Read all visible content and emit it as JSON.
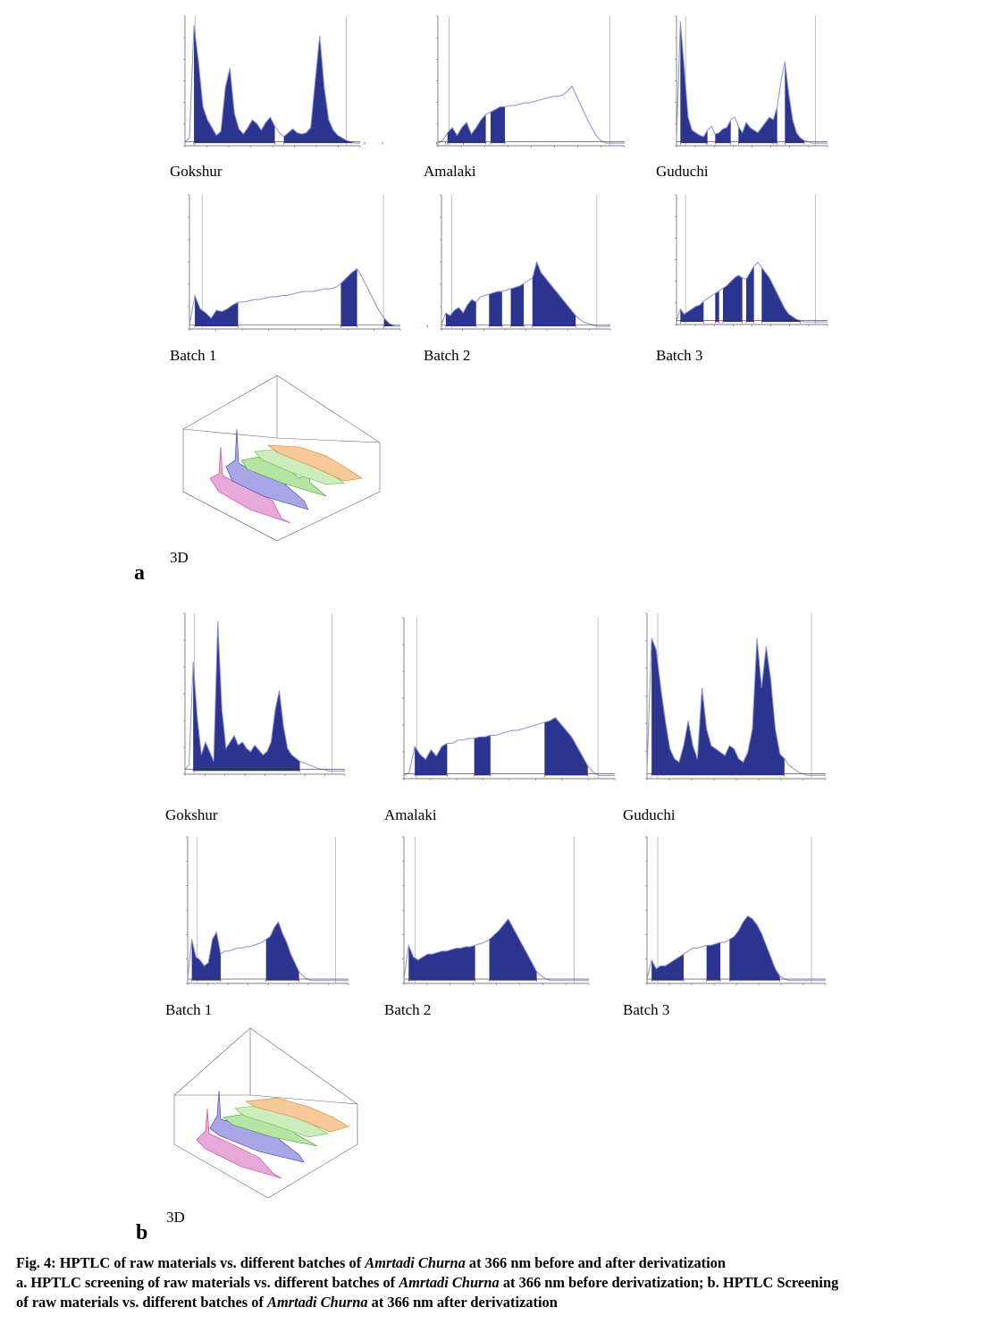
{
  "colors": {
    "fill": "#2b3590",
    "baseline": "#8a8fd8",
    "axis": "#555555",
    "marker": "#d43a8f"
  },
  "chart_data": [
    {
      "id": "a1",
      "type": "area",
      "label": "Gokshur",
      "ylim": [
        0,
        1
      ],
      "values": [
        0.03,
        0.06,
        0.93,
        0.65,
        0.3,
        0.2,
        0.14,
        0.08,
        0.11,
        0.45,
        0.6,
        0.25,
        0.13,
        0.09,
        0.14,
        0.2,
        0.17,
        0.12,
        0.18,
        0.22,
        0.15,
        0.1,
        0.07,
        0.1,
        0.13,
        0.1,
        0.09,
        0.1,
        0.14,
        0.5,
        0.85,
        0.45,
        0.2,
        0.12,
        0.08,
        0.06,
        0.04,
        0.03,
        0.02,
        0.02
      ],
      "fills": [
        [
          2,
          20
        ],
        [
          22,
          40
        ],
        [
          44,
          56
        ],
        [
          58,
          62
        ]
      ],
      "baseline": [
        [
          0,
          0.05
        ],
        [
          60,
          0.05
        ]
      ]
    },
    {
      "id": "a2",
      "type": "area",
      "label": "Amalaki",
      "ylim": [
        0,
        1
      ],
      "values": [
        0.02,
        0.04,
        0.1,
        0.14,
        0.08,
        0.14,
        0.18,
        0.09,
        0.14,
        0.2,
        0.24,
        0.26,
        0.28,
        0.3,
        0.3,
        0.31,
        0.31,
        0.32,
        0.33,
        0.33,
        0.34,
        0.35,
        0.36,
        0.37,
        0.38,
        0.38,
        0.39,
        0.42,
        0.46,
        0.38,
        0.3,
        0.22,
        0.15,
        0.08,
        0.04,
        0.02,
        0.02,
        0.02,
        0.02,
        0.02
      ],
      "fills": [
        [
          2,
          10
        ],
        [
          11,
          14
        ],
        [
          56,
          70
        ]
      ],
      "baseline": [
        [
          0,
          0.05
        ],
        [
          80,
          0.05
        ]
      ]
    },
    {
      "id": "a3",
      "type": "area",
      "label": "Guduchi",
      "ylim": [
        0,
        1
      ],
      "values": [
        0.05,
        0.96,
        0.6,
        0.22,
        0.12,
        0.1,
        0.08,
        0.07,
        0.12,
        0.15,
        0.09,
        0.1,
        0.13,
        0.14,
        0.2,
        0.22,
        0.15,
        0.1,
        0.18,
        0.14,
        0.12,
        0.1,
        0.14,
        0.18,
        0.22,
        0.2,
        0.3,
        0.5,
        0.65,
        0.4,
        0.2,
        0.1,
        0.06,
        0.04,
        0.03,
        0.02,
        0.02,
        0.02,
        0.02,
        0.02
      ],
      "fills": [
        [
          1,
          8
        ],
        [
          10,
          14
        ],
        [
          16,
          26
        ],
        [
          28,
          33
        ]
      ],
      "baseline": [
        [
          0,
          0.05
        ],
        [
          60,
          0.05
        ]
      ]
    },
    {
      "id": "a4",
      "type": "area",
      "label": "Batch 1",
      "ylim": [
        0,
        1
      ],
      "values": [
        0.03,
        0.25,
        0.15,
        0.12,
        0.08,
        0.14,
        0.13,
        0.15,
        0.18,
        0.2,
        0.2,
        0.21,
        0.22,
        0.22,
        0.23,
        0.24,
        0.24,
        0.25,
        0.25,
        0.26,
        0.27,
        0.28,
        0.28,
        0.28,
        0.29,
        0.3,
        0.3,
        0.31,
        0.34,
        0.38,
        0.42,
        0.45,
        0.38,
        0.3,
        0.22,
        0.14,
        0.08,
        0.04,
        0.02,
        0.02
      ],
      "fills": [
        [
          1,
          9
        ],
        [
          28,
          31
        ],
        [
          36,
          44
        ]
      ],
      "baseline": [
        [
          0,
          0.04
        ],
        [
          60,
          0.04
        ]
      ]
    },
    {
      "id": "a5",
      "type": "area",
      "label": "Batch 2",
      "ylim": [
        0,
        1
      ],
      "values": [
        0.03,
        0.12,
        0.1,
        0.14,
        0.16,
        0.12,
        0.18,
        0.22,
        0.2,
        0.24,
        0.25,
        0.26,
        0.27,
        0.28,
        0.28,
        0.29,
        0.3,
        0.31,
        0.32,
        0.34,
        0.36,
        0.38,
        0.5,
        0.42,
        0.38,
        0.34,
        0.3,
        0.26,
        0.22,
        0.18,
        0.14,
        0.1,
        0.07,
        0.05,
        0.04,
        0.03,
        0.02,
        0.02,
        0.02,
        0.02
      ],
      "fills": [
        [
          1,
          8
        ],
        [
          11,
          14
        ],
        [
          16,
          19
        ],
        [
          21,
          31
        ]
      ],
      "baseline": [
        [
          0,
          0.04
        ],
        [
          60,
          0.04
        ]
      ]
    },
    {
      "id": "a6",
      "type": "area",
      "label": "Batch 3",
      "ylim": [
        0,
        1
      ],
      "values": [
        0.03,
        0.12,
        0.08,
        0.1,
        0.12,
        0.14,
        0.15,
        0.18,
        0.2,
        0.22,
        0.24,
        0.26,
        0.28,
        0.3,
        0.33,
        0.36,
        0.38,
        0.36,
        0.35,
        0.4,
        0.45,
        0.48,
        0.44,
        0.4,
        0.36,
        0.3,
        0.24,
        0.18,
        0.12,
        0.08,
        0.06,
        0.04,
        0.03,
        0.02,
        0.02,
        0.02,
        0.02,
        0.02,
        0.02,
        0.02
      ],
      "fills": [
        [
          1,
          7
        ],
        [
          10,
          11
        ],
        [
          12,
          17
        ],
        [
          18,
          20
        ],
        [
          22,
          32
        ]
      ],
      "baseline": [
        [
          0,
          0.05
        ],
        [
          60,
          0.05
        ]
      ]
    },
    {
      "id": "b1",
      "type": "area",
      "label": "Gokshur",
      "ylim": [
        0,
        1
      ],
      "values": [
        0.03,
        0.06,
        0.7,
        0.35,
        0.12,
        0.2,
        0.14,
        0.08,
        0.95,
        0.4,
        0.16,
        0.2,
        0.24,
        0.18,
        0.2,
        0.16,
        0.14,
        0.18,
        0.15,
        0.12,
        0.14,
        0.2,
        0.4,
        0.52,
        0.3,
        0.16,
        0.12,
        0.1,
        0.08,
        0.07,
        0.06,
        0.05,
        0.04,
        0.03,
        0.03,
        0.02,
        0.02,
        0.02,
        0.02,
        0.02
      ],
      "fills": [
        [
          2,
          28
        ]
      ],
      "baseline": [
        [
          0,
          0.05
        ],
        [
          60,
          0.05
        ]
      ]
    },
    {
      "id": "b2",
      "type": "area",
      "label": "Amalaki",
      "ylim": [
        0,
        1
      ],
      "values": [
        0.02,
        0.04,
        0.2,
        0.15,
        0.12,
        0.18,
        0.14,
        0.2,
        0.22,
        0.22,
        0.24,
        0.24,
        0.25,
        0.25,
        0.26,
        0.26,
        0.27,
        0.27,
        0.28,
        0.29,
        0.3,
        0.3,
        0.31,
        0.32,
        0.33,
        0.34,
        0.35,
        0.36,
        0.38,
        0.34,
        0.3,
        0.26,
        0.2,
        0.14,
        0.08,
        0.04,
        0.02,
        0.02,
        0.02,
        0.02
      ],
      "fills": [
        [
          2,
          8
        ],
        [
          13,
          16
        ],
        [
          26,
          34
        ]
      ],
      "baseline": [
        [
          0,
          0.05
        ],
        [
          80,
          0.05
        ]
      ]
    },
    {
      "id": "b3",
      "type": "area",
      "label": "Guduchi",
      "ylim": [
        0,
        1
      ],
      "values": [
        0.05,
        0.85,
        0.78,
        0.55,
        0.35,
        0.18,
        0.12,
        0.1,
        0.2,
        0.35,
        0.2,
        0.12,
        0.55,
        0.3,
        0.2,
        0.18,
        0.16,
        0.14,
        0.2,
        0.18,
        0.12,
        0.1,
        0.16,
        0.3,
        0.85,
        0.55,
        0.8,
        0.6,
        0.3,
        0.15,
        0.12,
        0.08,
        0.06,
        0.04,
        0.03,
        0.02,
        0.02,
        0.02,
        0.02,
        0.02
      ],
      "fills": [
        [
          1,
          30
        ]
      ],
      "baseline": [
        [
          0,
          0.05
        ],
        [
          60,
          0.05
        ]
      ]
    },
    {
      "id": "b4",
      "type": "area",
      "label": "Batch 1",
      "ylim": [
        0,
        1
      ],
      "values": [
        0.03,
        0.3,
        0.18,
        0.16,
        0.12,
        0.14,
        0.3,
        0.35,
        0.2,
        0.22,
        0.22,
        0.23,
        0.24,
        0.24,
        0.25,
        0.25,
        0.26,
        0.27,
        0.28,
        0.3,
        0.32,
        0.38,
        0.42,
        0.34,
        0.28,
        0.2,
        0.14,
        0.08,
        0.05,
        0.03,
        0.02,
        0.02,
        0.02,
        0.02,
        0.02,
        0.02,
        0.02,
        0.02,
        0.02,
        0.02
      ],
      "fills": [
        [
          1,
          8
        ],
        [
          19,
          27
        ]
      ],
      "baseline": [
        [
          0,
          0.04
        ],
        [
          60,
          0.04
        ]
      ]
    },
    {
      "id": "b5",
      "type": "area",
      "label": "Batch 2",
      "ylim": [
        0,
        1
      ],
      "values": [
        0.03,
        0.26,
        0.18,
        0.16,
        0.18,
        0.2,
        0.2,
        0.21,
        0.22,
        0.22,
        0.23,
        0.24,
        0.24,
        0.25,
        0.25,
        0.26,
        0.27,
        0.28,
        0.3,
        0.33,
        0.36,
        0.4,
        0.44,
        0.38,
        0.32,
        0.26,
        0.2,
        0.14,
        0.08,
        0.05,
        0.03,
        0.02,
        0.02,
        0.02,
        0.02,
        0.02,
        0.02,
        0.02,
        0.02,
        0.02
      ],
      "fills": [
        [
          1,
          15
        ],
        [
          18,
          28
        ]
      ],
      "baseline": [
        [
          0,
          0.04
        ],
        [
          60,
          0.04
        ]
      ]
    },
    {
      "id": "b6",
      "type": "area",
      "label": "Batch 3",
      "ylim": [
        0,
        1
      ],
      "values": [
        0.03,
        0.16,
        0.1,
        0.12,
        0.12,
        0.14,
        0.16,
        0.18,
        0.2,
        0.22,
        0.24,
        0.24,
        0.25,
        0.26,
        0.26,
        0.27,
        0.28,
        0.28,
        0.3,
        0.32,
        0.36,
        0.42,
        0.46,
        0.44,
        0.4,
        0.34,
        0.26,
        0.18,
        0.1,
        0.05,
        0.03,
        0.02,
        0.02,
        0.02,
        0.02,
        0.02,
        0.02,
        0.02,
        0.02,
        0.02
      ],
      "fills": [
        [
          1,
          8
        ],
        [
          13,
          16
        ],
        [
          18,
          29
        ]
      ],
      "baseline": [
        [
          0,
          0.04
        ],
        [
          60,
          0.04
        ]
      ]
    }
  ],
  "panels": {
    "a": {
      "letter": "a",
      "threeD": "3D"
    },
    "b": {
      "letter": "b",
      "threeD": "3D"
    }
  },
  "caption": {
    "title_pre": "Fig. 4: HPTLC of raw materials vs. different batches of ",
    "title_italic": "Amrtadi Churna",
    "title_post": " at 366 nm before and after derivatization",
    "line2_pre": "a. HPTLC screening of raw materials vs. different batches of ",
    "line2_italic": "Amrtadi Churna",
    "line2_post": " at 366 nm before derivatization; b. HPTLC Screening",
    "line3_pre": "of raw materials vs. different batches of ",
    "line3_italic": "Amrtadi Churna",
    "line3_post": " at 366 nm after derivatization"
  }
}
